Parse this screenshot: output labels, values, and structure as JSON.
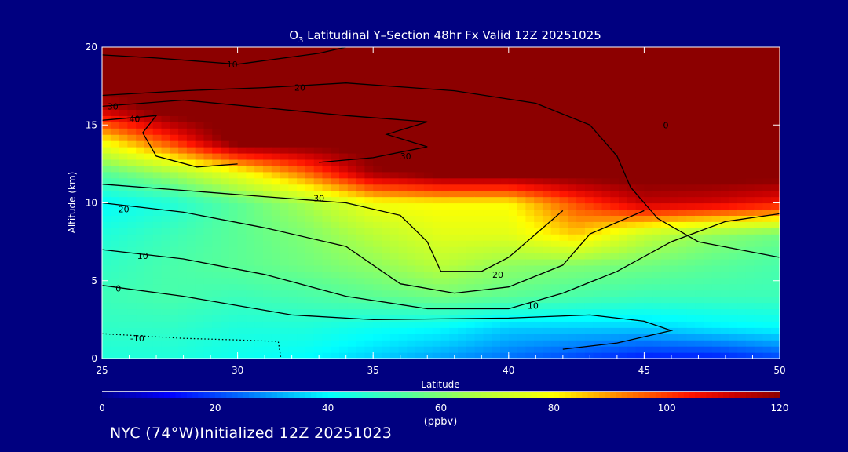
{
  "chart_data": {
    "type": "heatmap",
    "title_prefix": "O",
    "title_sub": "3",
    "title_rest": " Latitudinal Y–Section 48hr  Fx Valid 12Z 20251025",
    "xlabel": "Latitude",
    "ylabel": "Altitude (km)",
    "xlim": [
      25,
      50
    ],
    "ylim": [
      0,
      20
    ],
    "xticks": [
      "25",
      "30",
      "35",
      "40",
      "45",
      "50"
    ],
    "yticks": [
      "0",
      "5",
      "10",
      "15",
      "20"
    ],
    "x": [
      25,
      27.5,
      30,
      32.5,
      35,
      37.5,
      40,
      42.5,
      45,
      47.5,
      50
    ],
    "y": [
      0,
      2,
      4,
      6,
      8,
      10,
      12,
      14,
      16,
      18,
      20
    ],
    "values": [
      [
        45,
        45,
        42,
        40,
        35,
        30,
        25,
        20,
        15,
        15,
        20
      ],
      [
        48,
        48,
        45,
        45,
        42,
        40,
        35,
        35,
        35,
        38,
        40
      ],
      [
        50,
        52,
        50,
        52,
        55,
        58,
        55,
        52,
        50,
        50,
        50
      ],
      [
        48,
        52,
        55,
        58,
        62,
        68,
        62,
        60,
        58,
        55,
        52
      ],
      [
        45,
        50,
        55,
        60,
        68,
        75,
        75,
        85,
        70,
        62,
        58
      ],
      [
        40,
        45,
        55,
        65,
        78,
        80,
        80,
        98,
        112,
        110,
        105
      ],
      [
        55,
        65,
        78,
        95,
        118,
        125,
        125,
        125,
        125,
        125,
        125
      ],
      [
        80,
        100,
        125,
        125,
        125,
        125,
        125,
        125,
        125,
        125,
        125
      ],
      [
        112,
        125,
        125,
        125,
        125,
        125,
        125,
        125,
        125,
        125,
        125
      ],
      [
        125,
        125,
        125,
        125,
        125,
        125,
        125,
        125,
        125,
        125,
        125
      ],
      [
        125,
        125,
        125,
        125,
        125,
        125,
        125,
        125,
        125,
        125,
        125
      ]
    ],
    "contours": [
      {
        "level": "10",
        "dotted": false,
        "label_at": [
          29.8,
          18.9
        ],
        "points": [
          [
            25,
            19.5
          ],
          [
            27,
            19.3
          ],
          [
            30,
            18.9
          ],
          [
            33,
            19.6
          ],
          [
            34,
            20
          ]
        ]
      },
      {
        "level": "20",
        "dotted": false,
        "label_at": [
          32.3,
          17.4
        ],
        "points": [
          [
            25,
            16.9
          ],
          [
            28,
            17.2
          ],
          [
            31,
            17.4
          ],
          [
            34,
            17.7
          ],
          [
            38,
            17.2
          ],
          [
            41,
            16.4
          ],
          [
            43,
            15
          ],
          [
            44,
            13
          ],
          [
            44.5,
            11
          ],
          [
            45.5,
            9
          ],
          [
            47,
            7.5
          ],
          [
            50,
            6.5
          ]
        ]
      },
      {
        "level": "30",
        "dotted": false,
        "label_at": [
          25.4,
          16.2
        ],
        "points": [
          [
            25,
            16.2
          ],
          [
            28,
            16.6
          ],
          [
            31,
            16.1
          ],
          [
            34,
            15.6
          ],
          [
            37,
            15.2
          ],
          [
            35.5,
            14.4
          ],
          [
            37,
            13.6
          ],
          [
            35,
            12.9
          ],
          [
            33,
            12.6
          ]
        ]
      },
      {
        "level": "40",
        "dotted": false,
        "label_at": [
          26.2,
          15.4
        ],
        "points": [
          [
            25,
            15.3
          ],
          [
            27,
            15.6
          ],
          [
            26.5,
            14.5
          ],
          [
            27,
            13
          ],
          [
            28.5,
            12.3
          ],
          [
            30,
            12.5
          ]
        ]
      },
      {
        "level": "30",
        "dotted": false,
        "label_at": [
          36.2,
          13
        ]
      },
      {
        "level": "30",
        "dotted": false,
        "label_at": [
          33,
          10.3
        ],
        "points": [
          [
            25,
            11.2
          ],
          [
            28,
            10.8
          ],
          [
            31,
            10.4
          ],
          [
            34,
            10
          ],
          [
            36,
            9.2
          ],
          [
            37,
            7.5
          ],
          [
            37.5,
            5.6
          ],
          [
            39,
            5.6
          ],
          [
            40,
            6.5
          ],
          [
            41,
            8
          ],
          [
            42,
            9.5
          ]
        ]
      },
      {
        "level": "20",
        "dotted": false,
        "label_at": [
          25.8,
          9.6
        ],
        "points": [
          [
            25,
            10
          ],
          [
            28,
            9.4
          ],
          [
            31,
            8.4
          ],
          [
            34,
            7.2
          ],
          [
            36,
            4.8
          ],
          [
            38,
            4.2
          ],
          [
            40,
            4.6
          ],
          [
            42,
            6
          ],
          [
            43,
            8
          ],
          [
            45,
            9.5
          ]
        ]
      },
      {
        "level": "20",
        "dotted": false,
        "label_at": [
          39.6,
          5.4
        ]
      },
      {
        "level": "10",
        "dotted": false,
        "label_at": [
          26.5,
          6.6
        ],
        "points": [
          [
            25,
            7
          ],
          [
            28,
            6.4
          ],
          [
            31,
            5.4
          ],
          [
            34,
            4
          ],
          [
            37,
            3.2
          ],
          [
            40,
            3.2
          ],
          [
            42,
            4.2
          ],
          [
            44,
            5.6
          ],
          [
            46,
            7.5
          ],
          [
            48,
            8.8
          ],
          [
            50,
            9.3
          ]
        ]
      },
      {
        "level": "10",
        "dotted": false,
        "label_at": [
          40.9,
          3.4
        ]
      },
      {
        "level": "0",
        "dotted": false,
        "label_at": [
          45.8,
          15
        ]
      },
      {
        "level": "0",
        "dotted": false,
        "label_at": [
          25.6,
          4.5
        ],
        "points": [
          [
            25,
            4.7
          ],
          [
            28,
            4
          ],
          [
            30,
            3.4
          ],
          [
            32,
            2.8
          ],
          [
            35,
            2.5
          ],
          [
            40,
            2.6
          ],
          [
            43,
            2.8
          ],
          [
            45,
            2.4
          ],
          [
            46,
            1.8
          ],
          [
            44,
            1
          ],
          [
            42,
            0.6
          ]
        ]
      },
      {
        "level": "-10",
        "dotted": true,
        "label_at": [
          26.3,
          1.3
        ],
        "points": [
          [
            25,
            1.6
          ],
          [
            28,
            1.3
          ],
          [
            30,
            1.2
          ],
          [
            31.5,
            1.1
          ],
          [
            31.6,
            0
          ]
        ]
      }
    ],
    "colorbar": {
      "label": "(ppbv)",
      "min": 0,
      "max": 120,
      "ticks": [
        "0",
        "20",
        "40",
        "60",
        "80",
        "100",
        "120"
      ]
    }
  },
  "footer": "NYC (74°W)Initialized 12Z 20251023"
}
